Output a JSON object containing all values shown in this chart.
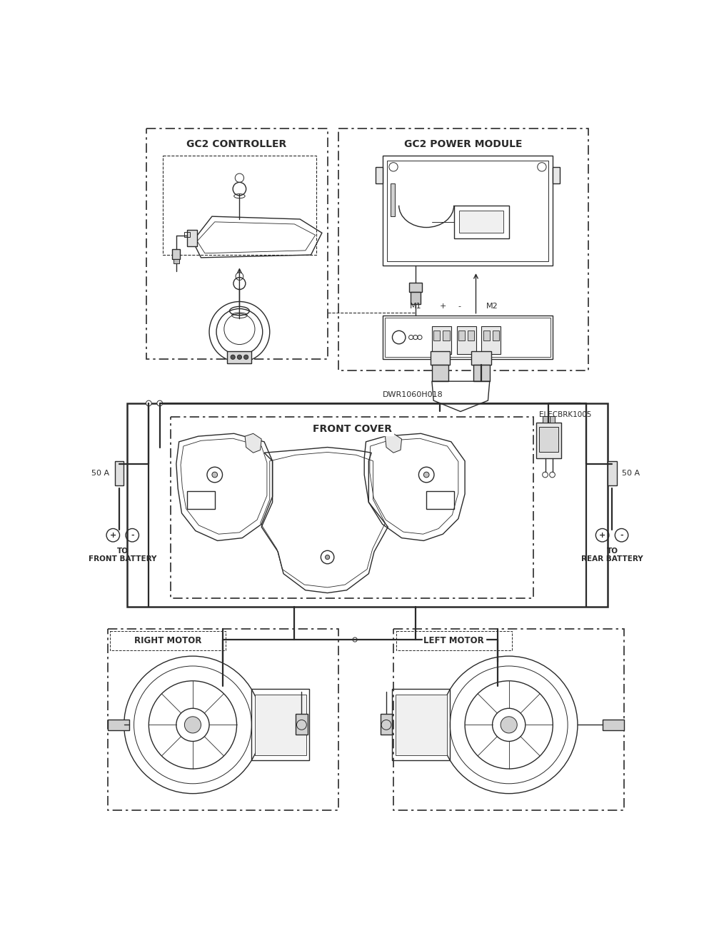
{
  "bg_color": "#ffffff",
  "line_color": "#2a2a2a",
  "figsize": [
    10.0,
    13.07
  ],
  "dpi": 100,
  "labels": {
    "gc2_controller": "GC2 CONTROLLER",
    "gc2_power_module": "GC2 POWER MODULE",
    "front_cover": "FRONT COVER",
    "right_motor": "RIGHT MOTOR",
    "left_motor": "LEFT MOTOR",
    "dwr": "DWR1060H018",
    "elecbrk": "ELECBRK1005",
    "m1": "M1",
    "m2": "M2",
    "plus": "+",
    "minus": "-",
    "fifty_a_left": "50 A",
    "fifty_a_right": "50 A",
    "to_front_battery": "TO\nFRONT BATTERY",
    "to_rear_battery": "TO\nREAR BATTERY"
  }
}
